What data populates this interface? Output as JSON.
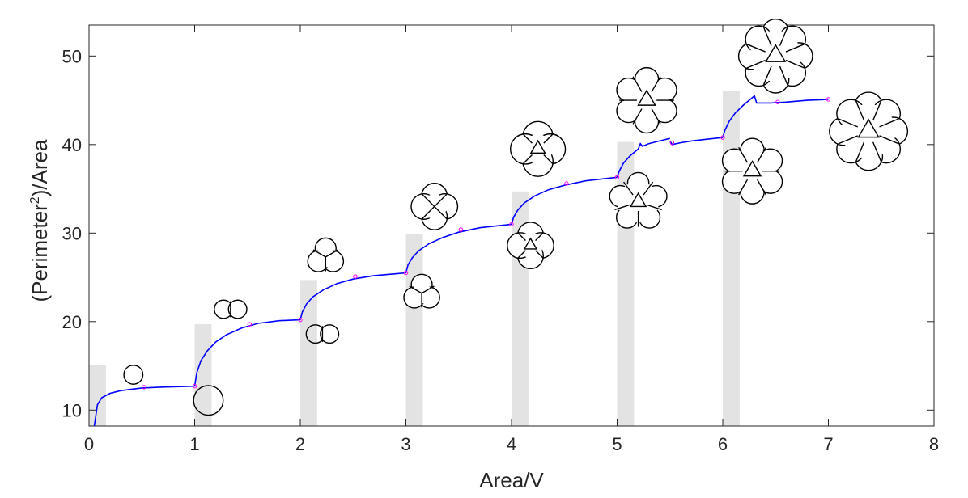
{
  "chart_data": {
    "type": "line",
    "xlabel": "Area/V",
    "ylabel_main": "(Perimeter",
    "ylabel_sup": "2",
    "ylabel_tail": ")/Area",
    "xlim": [
      0,
      8
    ],
    "ylim": [
      8.2,
      53.5
    ],
    "xticks": [
      "0",
      "1",
      "2",
      "3",
      "4",
      "5",
      "6",
      "7",
      "8"
    ],
    "yticks": [
      "10",
      "20",
      "30",
      "40",
      "50"
    ],
    "line_color": "#0000ff",
    "marker_color": "#ff00ff",
    "bar_color": "#e3e3e3",
    "bars": [
      {
        "x": 0.0,
        "width": 0.16,
        "value": 15.1
      },
      {
        "x": 1.0,
        "width": 0.16,
        "value": 19.7
      },
      {
        "x": 2.0,
        "width": 0.16,
        "value": 24.7
      },
      {
        "x": 3.0,
        "width": 0.16,
        "value": 29.9
      },
      {
        "x": 4.0,
        "width": 0.16,
        "value": 34.7
      },
      {
        "x": 5.0,
        "width": 0.16,
        "value": 40.3
      },
      {
        "x": 6.0,
        "width": 0.16,
        "value": 46.1
      }
    ],
    "series": [
      {
        "segments": [
          [
            [
              0.05,
              8.2
            ],
            [
              0.08,
              10.6
            ],
            [
              0.12,
              11.4
            ],
            [
              0.2,
              11.9
            ],
            [
              0.3,
              12.2
            ],
            [
              0.5,
              12.5
            ],
            [
              0.7,
              12.6
            ],
            [
              1.0,
              12.7
            ]
          ],
          [
            [
              1.0,
              12.7
            ],
            [
              1.02,
              14.2
            ],
            [
              1.06,
              15.6
            ],
            [
              1.12,
              16.7
            ],
            [
              1.2,
              17.7
            ],
            [
              1.3,
              18.5
            ],
            [
              1.45,
              19.3
            ],
            [
              1.6,
              19.8
            ],
            [
              1.8,
              20.1
            ],
            [
              2.0,
              20.2
            ]
          ],
          [
            [
              2.0,
              20.2
            ],
            [
              2.02,
              21.1
            ],
            [
              2.06,
              22.0
            ],
            [
              2.12,
              22.8
            ],
            [
              2.22,
              23.6
            ],
            [
              2.35,
              24.3
            ],
            [
              2.5,
              24.8
            ],
            [
              2.7,
              25.2
            ],
            [
              3.0,
              25.5
            ]
          ],
          [
            [
              3.0,
              25.5
            ],
            [
              3.02,
              26.4
            ],
            [
              3.06,
              27.2
            ],
            [
              3.12,
              28.0
            ],
            [
              3.22,
              28.8
            ],
            [
              3.35,
              29.5
            ],
            [
              3.5,
              30.1
            ],
            [
              3.7,
              30.6
            ],
            [
              4.0,
              31.0
            ]
          ],
          [
            [
              4.0,
              31.0
            ],
            [
              4.02,
              31.8
            ],
            [
              4.06,
              32.6
            ],
            [
              4.12,
              33.4
            ],
            [
              4.22,
              34.2
            ],
            [
              4.35,
              34.9
            ],
            [
              4.5,
              35.4
            ],
            [
              4.7,
              35.9
            ],
            [
              5.0,
              36.3
            ]
          ],
          [
            [
              5.0,
              36.3
            ],
            [
              5.02,
              37.0
            ],
            [
              5.06,
              37.9
            ],
            [
              5.12,
              38.7
            ],
            [
              5.2,
              39.5
            ],
            [
              5.22,
              40.1
            ],
            [
              5.24,
              39.8
            ],
            [
              5.3,
              40.1
            ],
            [
              5.4,
              40.4
            ],
            [
              5.5,
              40.7
            ]
          ],
          [
            [
              5.5,
              40.4
            ],
            [
              5.52,
              40.0
            ],
            [
              5.6,
              40.2
            ],
            [
              5.7,
              40.4
            ],
            [
              5.85,
              40.6
            ],
            [
              6.0,
              40.8
            ]
          ],
          [
            [
              6.0,
              40.8
            ],
            [
              6.02,
              41.6
            ],
            [
              6.06,
              42.6
            ],
            [
              6.12,
              43.6
            ],
            [
              6.2,
              44.5
            ],
            [
              6.3,
              45.5
            ],
            [
              6.32,
              44.7
            ],
            [
              6.45,
              44.7
            ],
            [
              6.6,
              44.8
            ],
            [
              6.8,
              45.0
            ],
            [
              7.0,
              45.1
            ]
          ]
        ]
      }
    ],
    "markers": [
      [
        0.52,
        12.6
      ],
      [
        1.0,
        12.7
      ],
      [
        1.52,
        19.7
      ],
      [
        2.0,
        20.2
      ],
      [
        2.52,
        25.1
      ],
      [
        3.0,
        25.5
      ],
      [
        3.52,
        30.4
      ],
      [
        4.0,
        31.0
      ],
      [
        4.52,
        35.6
      ],
      [
        5.0,
        36.3
      ],
      [
        5.52,
        40.2
      ],
      [
        6.0,
        40.8
      ],
      [
        6.52,
        44.8
      ],
      [
        7.0,
        45.1
      ]
    ],
    "cell_icons": [
      {
        "cx": 0.42,
        "cy": 14.0,
        "r": 0.09,
        "cells": "1"
      },
      {
        "cx": 1.13,
        "cy": 11.1,
        "r": 0.14,
        "cells": "1"
      },
      {
        "cx": 1.34,
        "cy": 21.4,
        "r": 0.14,
        "cells": "2"
      },
      {
        "cx": 2.21,
        "cy": 18.6,
        "r": 0.14,
        "cells": "2"
      },
      {
        "cx": 2.24,
        "cy": 27.3,
        "r": 0.18,
        "cells": "3"
      },
      {
        "cx": 3.15,
        "cy": 23.2,
        "r": 0.18,
        "cells": "3"
      },
      {
        "cx": 3.27,
        "cy": 33.0,
        "r": 0.22,
        "cells": "4"
      },
      {
        "cx": 4.18,
        "cy": 28.6,
        "r": 0.22,
        "cells": "5"
      },
      {
        "cx": 4.25,
        "cy": 39.5,
        "r": 0.26,
        "cells": "5"
      },
      {
        "cx": 5.2,
        "cy": 33.5,
        "r": 0.28,
        "cells": "6"
      },
      {
        "cx": 5.28,
        "cy": 45.0,
        "r": 0.31,
        "cells": "7"
      },
      {
        "cx": 6.28,
        "cy": 37.0,
        "r": 0.31,
        "cells": "7"
      },
      {
        "cx": 6.5,
        "cy": 50.0,
        "r": 0.35,
        "cells": "9"
      },
      {
        "cx": 7.38,
        "cy": 41.5,
        "r": 0.37,
        "cells": "10"
      }
    ]
  }
}
